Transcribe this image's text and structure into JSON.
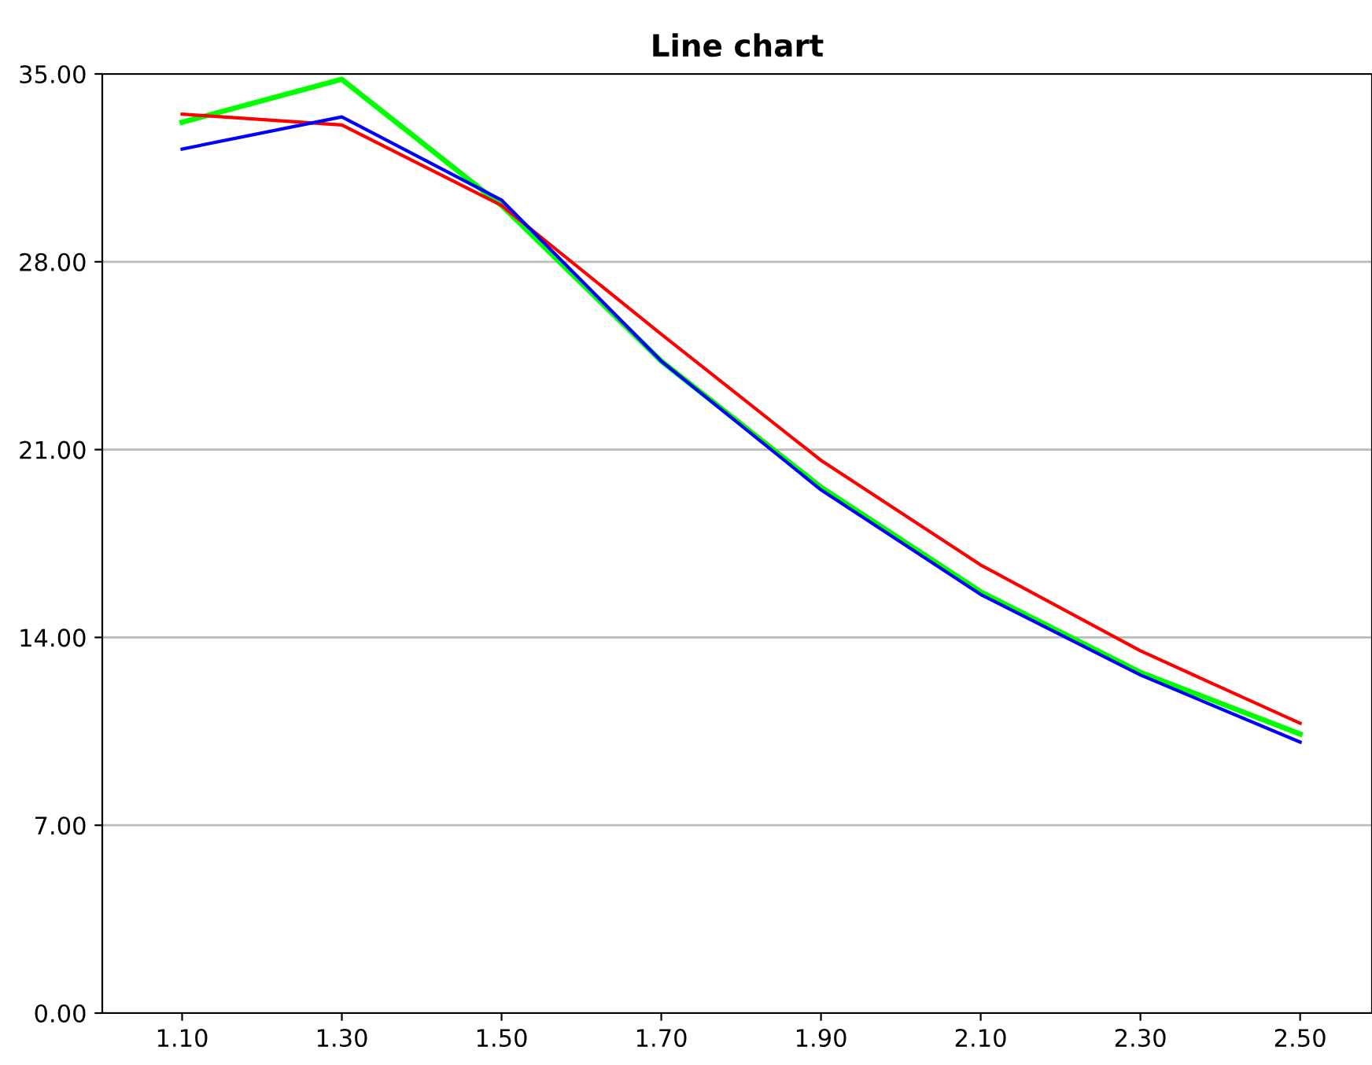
{
  "chart_data": {
    "type": "line",
    "title": "Line chart",
    "x": [
      1.1,
      1.3,
      1.5,
      1.7,
      1.9,
      2.1,
      2.3,
      2.5
    ],
    "series": [
      {
        "color": "#00ff00",
        "values": [
          33.2,
          34.8,
          30.1,
          24.3,
          19.6,
          15.7,
          12.7,
          10.4
        ]
      },
      {
        "color": "#ff0000",
        "values": [
          33.5,
          33.1,
          30.1,
          25.3,
          20.6,
          16.7,
          13.5,
          10.8
        ]
      },
      {
        "color": "#0000ff",
        "values": [
          32.2,
          33.4,
          30.3,
          24.3,
          19.5,
          15.6,
          12.6,
          10.1
        ]
      }
    ],
    "xlim": [
      1.0,
      2.59
    ],
    "xticks": [
      {
        "value": 1.1,
        "label": "1.10"
      },
      {
        "value": 1.3,
        "label": "1.30"
      },
      {
        "value": 1.5,
        "label": "1.50"
      },
      {
        "value": 1.7,
        "label": "1.70"
      },
      {
        "value": 1.9,
        "label": "1.90"
      },
      {
        "value": 2.1,
        "label": "2.10"
      },
      {
        "value": 2.3,
        "label": "2.30"
      },
      {
        "value": 2.5,
        "label": "2.50"
      }
    ],
    "ylim": [
      0,
      35
    ],
    "yticks": [
      {
        "value": 0,
        "label": "0.00"
      },
      {
        "value": 7,
        "label": "7.00"
      },
      {
        "value": 14,
        "label": "14.00"
      },
      {
        "value": 21,
        "label": "21.00"
      },
      {
        "value": 28,
        "label": "28.00"
      },
      {
        "value": 35,
        "label": "35.00"
      }
    ],
    "grid": "y",
    "marker": "none",
    "line_style": "solid"
  }
}
